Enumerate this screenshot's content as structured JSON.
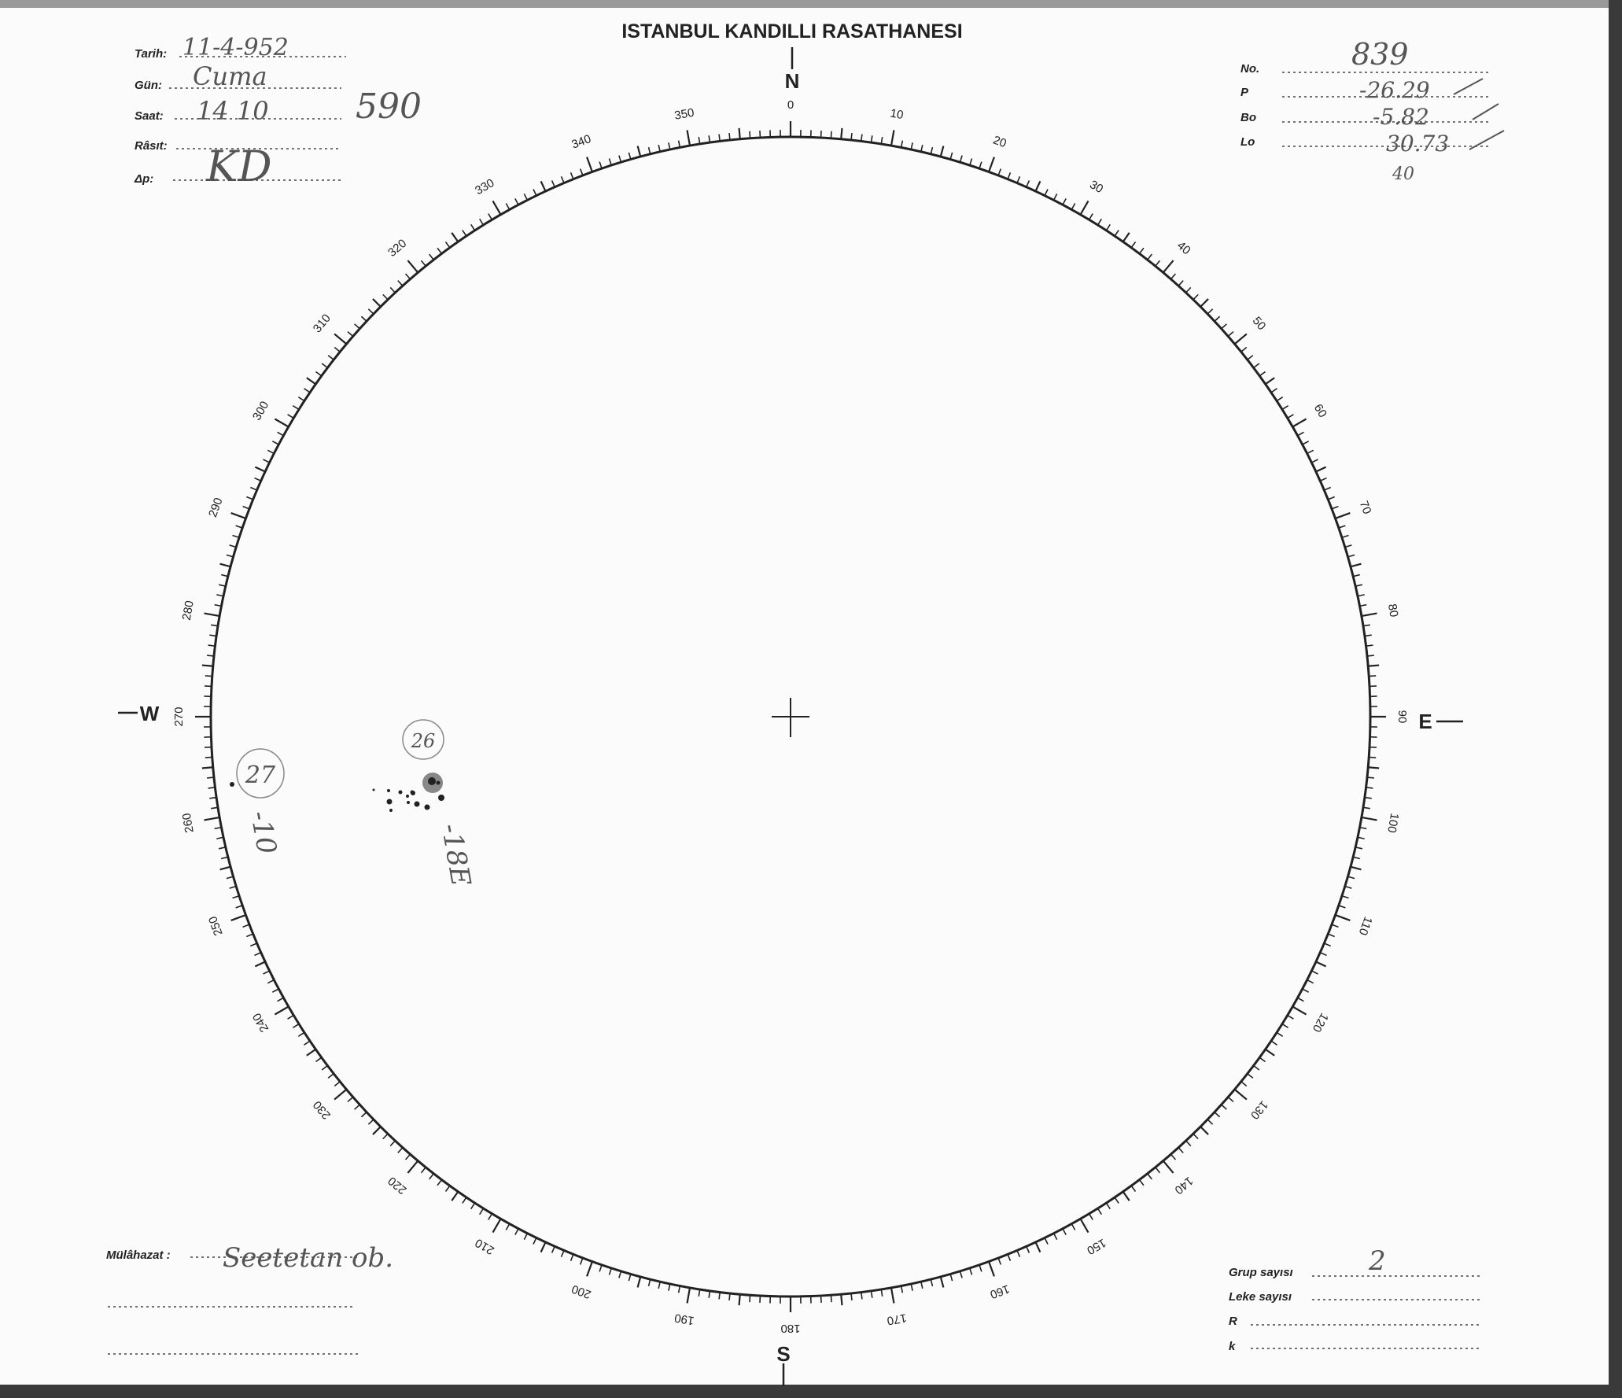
{
  "header": {
    "title": "ISTANBUL KANDILLI RASATHANESI"
  },
  "left_fields": [
    {
      "label": "Tarih:",
      "value": "11-4-952"
    },
    {
      "label": "Gün:",
      "value": "Cuma"
    },
    {
      "label": "Saat:",
      "value": "14 10"
    },
    {
      "label": "Râsıt:",
      "value": "KD"
    },
    {
      "label": "Δp:",
      "value": ""
    }
  ],
  "margin_note": "590",
  "right_fields": [
    {
      "label": "No.",
      "value": "839"
    },
    {
      "label": "P",
      "value": "-26.29"
    },
    {
      "label": "Bo",
      "value": "-5.82"
    },
    {
      "label": "Lo",
      "value": "30.73"
    }
  ],
  "right_note": "40",
  "compass": {
    "north": "N",
    "south": "S",
    "west": "W",
    "east": "E"
  },
  "scale_labels": [
    "0",
    "10",
    "20",
    "30",
    "40",
    "50",
    "60",
    "70",
    "80",
    "90",
    "100",
    "110",
    "120",
    "130",
    "140",
    "150",
    "160",
    "170",
    "180",
    "190",
    "200",
    "210",
    "220",
    "230",
    "240",
    "250",
    "260",
    "270",
    "280",
    "290",
    "300",
    "310",
    "320",
    "330",
    "340",
    "350"
  ],
  "sunspot_groups": [
    {
      "number": "26",
      "annotation": "-18E"
    },
    {
      "number": "27",
      "annotation": "-10"
    }
  ],
  "remarks": {
    "label": "Mülâhazat :",
    "value": "Seetetan ob."
  },
  "bottom_fields": [
    {
      "label": "Grup sayısı",
      "value": "2"
    },
    {
      "label": "Leke sayısı",
      "value": ""
    },
    {
      "label": "R",
      "value": ""
    },
    {
      "label": "k",
      "value": ""
    }
  ],
  "colors": {
    "ink": "#222222",
    "pencil": "#555555",
    "paper": "#fbfbfb",
    "scan_border": "#3a3a3a"
  }
}
